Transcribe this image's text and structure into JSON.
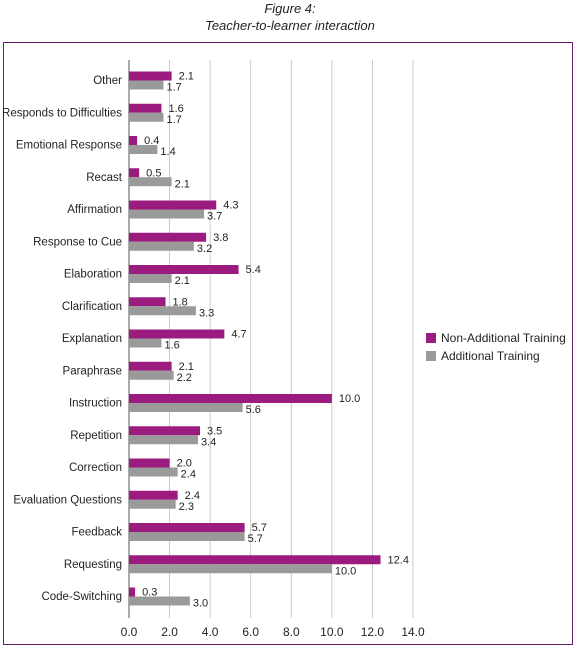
{
  "figure": {
    "label": "Figure 4:",
    "title": "Teacher-to-learner interaction"
  },
  "colors": {
    "non_additional": "#9b1b7e",
    "additional": "#9a9a9a",
    "frame": "#6a1b6d",
    "grid": "#bdbdbd"
  },
  "chart_data": {
    "type": "bar",
    "orientation": "horizontal",
    "title": "Teacher-to-learner interaction",
    "categories": [
      "Other",
      "Responds to Difficulties",
      "Emotional Response",
      "Recast",
      "Affirmation",
      "Response to Cue",
      "Elaboration",
      "Clarification",
      "Explanation",
      "Paraphrase",
      "Instruction",
      "Repetition",
      "Correction",
      "Evaluation Questions",
      "Feedback",
      "Requesting",
      "Code-Switching"
    ],
    "series": [
      {
        "name": "Non-Additional Training",
        "values": [
          2.1,
          1.6,
          0.4,
          0.5,
          4.3,
          3.8,
          5.4,
          1.8,
          4.7,
          2.1,
          10.0,
          3.5,
          2.0,
          2.4,
          5.7,
          12.4,
          0.3
        ],
        "labels": [
          "2.1",
          "1.6",
          "0.4",
          "0.5",
          "4.3",
          "3.8",
          "5.4",
          "1.8",
          "4.7",
          "2.1",
          "10.0",
          "3.5",
          "2.0",
          "2.4",
          "5.7",
          "12.4",
          "0.3"
        ]
      },
      {
        "name": "Additional Training",
        "values": [
          1.7,
          1.7,
          1.4,
          2.1,
          3.7,
          3.2,
          2.1,
          3.3,
          1.6,
          2.2,
          5.6,
          3.4,
          2.4,
          2.3,
          5.7,
          10.0,
          3.0
        ],
        "labels": [
          "1.7",
          "1.7",
          "1.4",
          "2.1",
          "3.7",
          "3.2",
          "2.1",
          "3.3",
          "1.6",
          "2.2",
          "5.6",
          "3.4",
          "2.4",
          "2.3",
          "5.7",
          "10.0",
          "3.0"
        ]
      }
    ],
    "xlim": [
      0,
      14
    ],
    "xticks": [
      "0.0",
      "2.0",
      "4.0",
      "6.0",
      "8.0",
      "10.0",
      "12.0",
      "14.0"
    ],
    "grid": true,
    "legend": "right"
  }
}
